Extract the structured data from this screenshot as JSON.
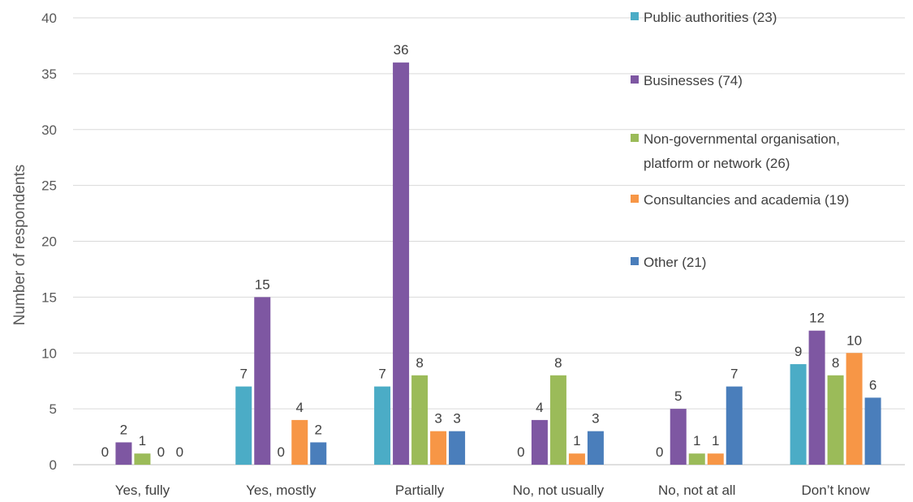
{
  "chart_data": {
    "type": "bar",
    "ylabel": "Number of respondents",
    "xlabel": "",
    "ylim": [
      0,
      40
    ],
    "yticks": [
      0,
      5,
      10,
      15,
      20,
      25,
      30,
      35,
      40
    ],
    "grid": true,
    "legend_position": "top-right",
    "categories": [
      "Yes, fully",
      "Yes, mostly",
      "Partially",
      "No, not usually",
      "No, not at all",
      "Don’t know"
    ],
    "series": [
      {
        "name": "Public authorities",
        "count": "(23)",
        "color": "#4bacc6",
        "values": [
          0,
          7,
          7,
          0,
          0,
          9
        ]
      },
      {
        "name": "Businesses",
        "count": "(74)",
        "color": "#7e57a2",
        "values": [
          2,
          15,
          36,
          4,
          5,
          12
        ]
      },
      {
        "name": "Non-governmental organisation, platform or network",
        "name_lines": [
          "Non-governmental organisation,",
          "platform or network"
        ],
        "count": "(26)",
        "color": "#9bbb59",
        "values": [
          1,
          0,
          8,
          8,
          1,
          8
        ]
      },
      {
        "name": "Consultancies and academia",
        "count": "(19)",
        "color": "#f79646",
        "values": [
          0,
          4,
          3,
          1,
          1,
          10
        ]
      },
      {
        "name": "Other",
        "count": "(21)",
        "color": "#4a7ebb",
        "values": [
          0,
          2,
          3,
          3,
          7,
          6
        ]
      }
    ]
  }
}
